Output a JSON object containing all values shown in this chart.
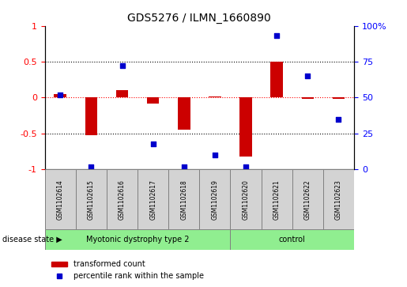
{
  "title": "GDS5276 / ILMN_1660890",
  "samples": [
    "GSM1102614",
    "GSM1102615",
    "GSM1102616",
    "GSM1102617",
    "GSM1102618",
    "GSM1102619",
    "GSM1102620",
    "GSM1102621",
    "GSM1102622",
    "GSM1102623"
  ],
  "red_values": [
    0.05,
    -0.52,
    0.1,
    -0.08,
    -0.45,
    0.02,
    -0.82,
    0.5,
    -0.02,
    -0.02
  ],
  "blue_values_pct": [
    52,
    2,
    72,
    18,
    2,
    10,
    2,
    93,
    65,
    35
  ],
  "ylim_left": [
    -1,
    1
  ],
  "ylim_right": [
    0,
    100
  ],
  "yticks_left": [
    -1,
    -0.5,
    0,
    0.5,
    1
  ],
  "yticks_right": [
    0,
    25,
    50,
    75,
    100
  ],
  "bar_color": "#CC0000",
  "dot_color": "#0000CC",
  "bg_color": "#FFFFFF",
  "legend_red_label": "transformed count",
  "legend_blue_label": "percentile rank within the sample",
  "bar_width": 0.4,
  "dot_size": 25,
  "group1_label": "Myotonic dystrophy type 2",
  "group2_label": "control",
  "group_color": "#90EE90",
  "sample_box_color": "#D3D3D3",
  "disease_state_label": "disease state"
}
